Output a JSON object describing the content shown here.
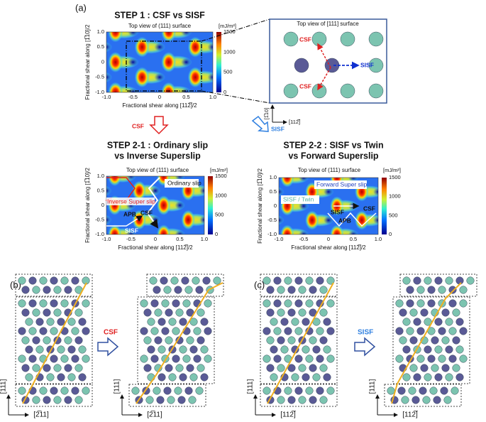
{
  "panel_a": {
    "label": "(a)",
    "step1": {
      "title": "STEP 1 : CSF vs SISF",
      "subtitle": "Top view of (111) surface",
      "unit": "[mJ/m²]",
      "colorbar_ticks": [
        "1500",
        "1000",
        "500",
        "0"
      ],
      "ylabel": "Fractional shear along [1̅10]/2",
      "xlabel": "Fractional shear along [112̅]/2",
      "xticks": [
        "-1.0",
        "-0.5",
        "0",
        "0.5",
        "1.0"
      ],
      "yticks": [
        "1.0",
        "0.5",
        "0",
        "-0.5",
        "-1.0"
      ]
    },
    "inset": {
      "title": "Top view of [111] surface",
      "csf_top": "CSF",
      "sisf": "SISF",
      "csf_bottom": "CSF",
      "axis_y": "[1̅10]",
      "axis_x": "[112̅]"
    },
    "arrow_csf": "CSF",
    "arrow_sisf": "SISF",
    "step2_1": {
      "title_line1": "STEP 2-1 : Ordinary slip",
      "title_line2": "vs Inverse Superslip",
      "subtitle": "Top view of (111) surface",
      "unit": "[mJ/m²]",
      "colorbar_ticks": [
        "1500",
        "1000",
        "500",
        "0"
      ],
      "ylabel": "Fractional shear along [1̅10]/2",
      "xlabel": "Fractional shear along [112̅]/2",
      "xticks": [
        "-1.0",
        "-0.5",
        "0",
        "0.5",
        "1.0"
      ],
      "yticks": [
        "1.0",
        "0.5",
        "0",
        "-0.5",
        "-1.0"
      ],
      "ordinary_slip": "Ordinary slip",
      "inverse_super_slip": "Inverse Super slip",
      "apb": "APB",
      "csf": "CSF",
      "sisf": "SISF"
    },
    "step2_2": {
      "title_line1": "STEP 2-2 : SISF vs Twin",
      "title_line2": "vs Forward Superslip",
      "subtitle": "Top view of (111) surface",
      "unit": "[mJ/m²]",
      "colorbar_ticks": [
        "1500",
        "1000",
        "500",
        "0"
      ],
      "ylabel": "Fractional shear along [1̅10]/2",
      "xlabel": "Fractional shear along [112̅]/2",
      "xticks": [
        "-1.0",
        "-0.5",
        "0",
        "0.5",
        "1.0"
      ],
      "yticks": [
        "1.0",
        "0.5",
        "0",
        "-0.5",
        "-1.0"
      ],
      "forward_super_slip": "Forward Super slip",
      "sisf_twin": "SISF / Twin",
      "sisf": "SISF",
      "csf": "CSF",
      "apb": "APB"
    }
  },
  "panel_b": {
    "label": "(b)",
    "arrow": "CSF",
    "axis_y": "[111]",
    "axis_x": "[2̅11]"
  },
  "panel_c": {
    "label": "(c)",
    "arrow": "SISF",
    "axis_y": "[111]",
    "axis_x": "[112̅]"
  }
}
